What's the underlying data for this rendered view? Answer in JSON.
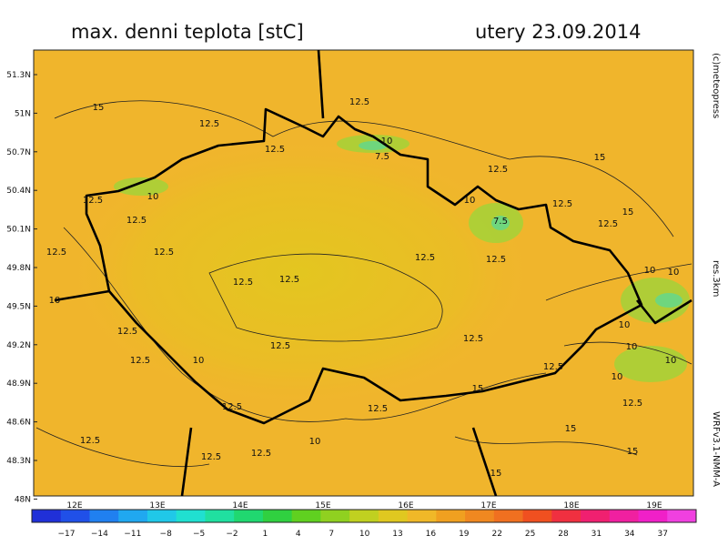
{
  "header": {
    "title": "max. denni teplota [stC]",
    "date": "utery 23.09.2014"
  },
  "side_texts": [
    "(c)meteopress",
    "res.3km",
    "WRFv3.1-NMM-A"
  ],
  "map": {
    "lat_labels": [
      "51.3N",
      "51N",
      "50.7N",
      "50.4N",
      "50.1N",
      "49.8N",
      "49.5N",
      "49.2N",
      "48.9N",
      "48.6N",
      "48.3N",
      "48N"
    ],
    "lon_labels": [
      "12E",
      "13E",
      "14E",
      "15E",
      "16E",
      "17E",
      "18E",
      "19E"
    ],
    "contour_labels": [
      "12.5",
      "12.5",
      "12.5",
      "12.5",
      "12.5",
      "12.5",
      "12.5",
      "12.5",
      "12.5",
      "12.5",
      "12.5",
      "12.5",
      "12.5",
      "12.5",
      "12.5",
      "12.5",
      "12.5",
      "12.5",
      "12.5",
      "12.5",
      "12.5",
      "12.5",
      "12.5",
      "12.5",
      "12.5",
      "15",
      "15",
      "15",
      "15",
      "15",
      "15",
      "15",
      "10",
      "10",
      "10",
      "10",
      "10",
      "10",
      "10",
      "10",
      "10",
      "10",
      "10",
      "10",
      "7.5",
      "7.5"
    ]
  },
  "colorbar": {
    "ticks": [
      "−17",
      "−14",
      "−11",
      "−8",
      "−5",
      "−2",
      "1",
      "4",
      "7",
      "10",
      "13",
      "16",
      "19",
      "22",
      "25",
      "28",
      "31",
      "34",
      "37"
    ]
  }
}
